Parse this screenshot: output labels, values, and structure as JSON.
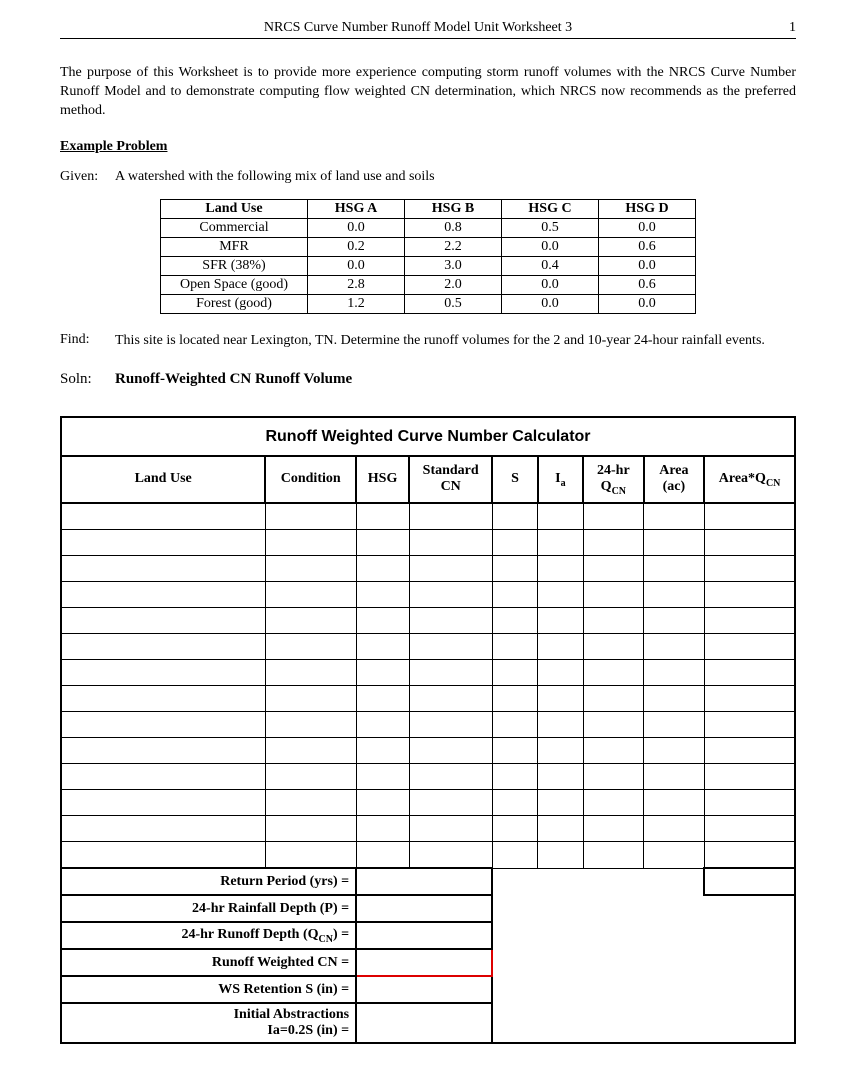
{
  "header": {
    "title": "NRCS Curve Number Runoff Model Unit Worksheet 3",
    "page": "1"
  },
  "intro": "The purpose of this Worksheet is to provide more experience computing storm runoff volumes with the NRCS Curve Number Runoff Model and to demonstrate computing flow weighted CN determination, which NRCS now recommends as the preferred method.",
  "example_heading": "Example Problem",
  "given": {
    "label": "Given:",
    "text": "A watershed with the following mix of land use and soils"
  },
  "landuse_table": {
    "columns": [
      "Land Use",
      "HSG A",
      "HSG B",
      "HSG C",
      "HSG D"
    ],
    "rows": [
      [
        "Commercial",
        "0.0",
        "0.8",
        "0.5",
        "0.0"
      ],
      [
        "MFR",
        "0.2",
        "2.2",
        "0.0",
        "0.6"
      ],
      [
        "SFR (38%)",
        "0.0",
        "3.0",
        "0.4",
        "0.0"
      ],
      [
        "Open Space (good)",
        "2.8",
        "2.0",
        "0.0",
        "0.6"
      ],
      [
        "Forest (good)",
        "1.2",
        "0.5",
        "0.0",
        "0.0"
      ]
    ]
  },
  "find": {
    "label": "Find:",
    "text": "This site is located near Lexington, TN.  Determine the runoff volumes for the 2 and 10-year 24-hour rainfall events."
  },
  "soln": {
    "label": "Soln:",
    "text": "Runoff-Weighted CN Runoff Volume"
  },
  "calc": {
    "title": "Runoff Weighted Curve Number Calculator",
    "columns": {
      "landuse": "Land Use",
      "condition": "Condition",
      "hsg": "HSG",
      "stdcn": "Standard CN",
      "s": "S",
      "ia": "I",
      "ia_sub": "a",
      "qcn_line1": "24-hr",
      "qcn_line2": "Q",
      "qcn_sub": "CN",
      "area_line1": "Area",
      "area_line2": "(ac)",
      "aqcn": "Area*Q",
      "aqcn_sub": "CN"
    },
    "blank_rows": 14,
    "params": [
      "Return Period (yrs) =",
      "24-hr Rainfall Depth (P) =",
      "24-hr Runoff Depth (Q",
      "Runoff Weighted CN =",
      "WS Retention S (in) =",
      "Initial Abstractions Ia=0.2S (in) ="
    ],
    "param_qcn_sub": "CN",
    "param_qcn_suffix": ") ="
  }
}
